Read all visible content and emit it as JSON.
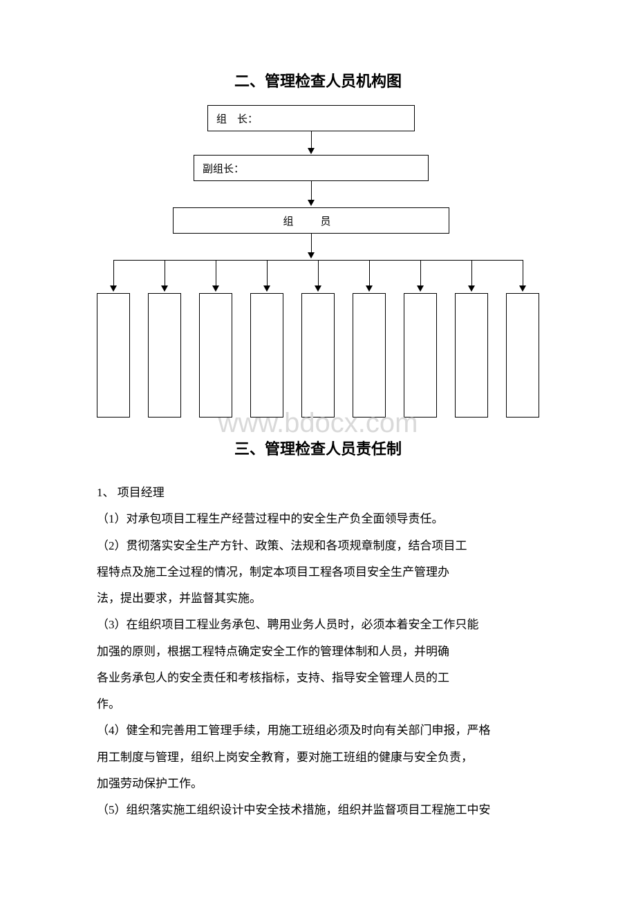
{
  "section2": {
    "title": "二、管理检查人员机构图",
    "nodes": {
      "leader": "组　长：",
      "deputy": "副组长：",
      "member": "组　员"
    },
    "leaf_count": 9,
    "colors": {
      "border": "#000000",
      "arrow": "#000000",
      "background": "#ffffff"
    }
  },
  "watermark": "www.bdocx.com",
  "section3": {
    "title": "三、管理检查人员责任制",
    "heading1": "1、 项目经理",
    "paras": [
      "（1）对承包项目工程生产经营过程中的安全生产负全面领导责任。",
      "（2）贯彻落实安全生产方针、政策、法规和各项规章制度，结合项目工",
      "程特点及施工全过程的情况，制定本项目工程各项目安全生产管理办",
      "法，提出要求，并监督其实施。",
      "（3）在组织项目工程业务承包、聘用业务人员时，必须本着安全工作只能",
      "加强的原则，根据工程特点确定安全工作的管理体制和人员，并明确",
      "各业务承包人的安全责任和考核指标，支持、指导安全管理人员的工",
      "作。",
      "（4）健全和完善用工管理手续，用施工班组必须及时向有关部门申报，严格",
      "用工制度与管理，组织上岗安全教育，要对施工班组的健康与安全负责，",
      "加强劳动保护工作。",
      "（5）组织落实施工组织设计中安全技术措施，组织并监督项目工程施工中安"
    ]
  }
}
